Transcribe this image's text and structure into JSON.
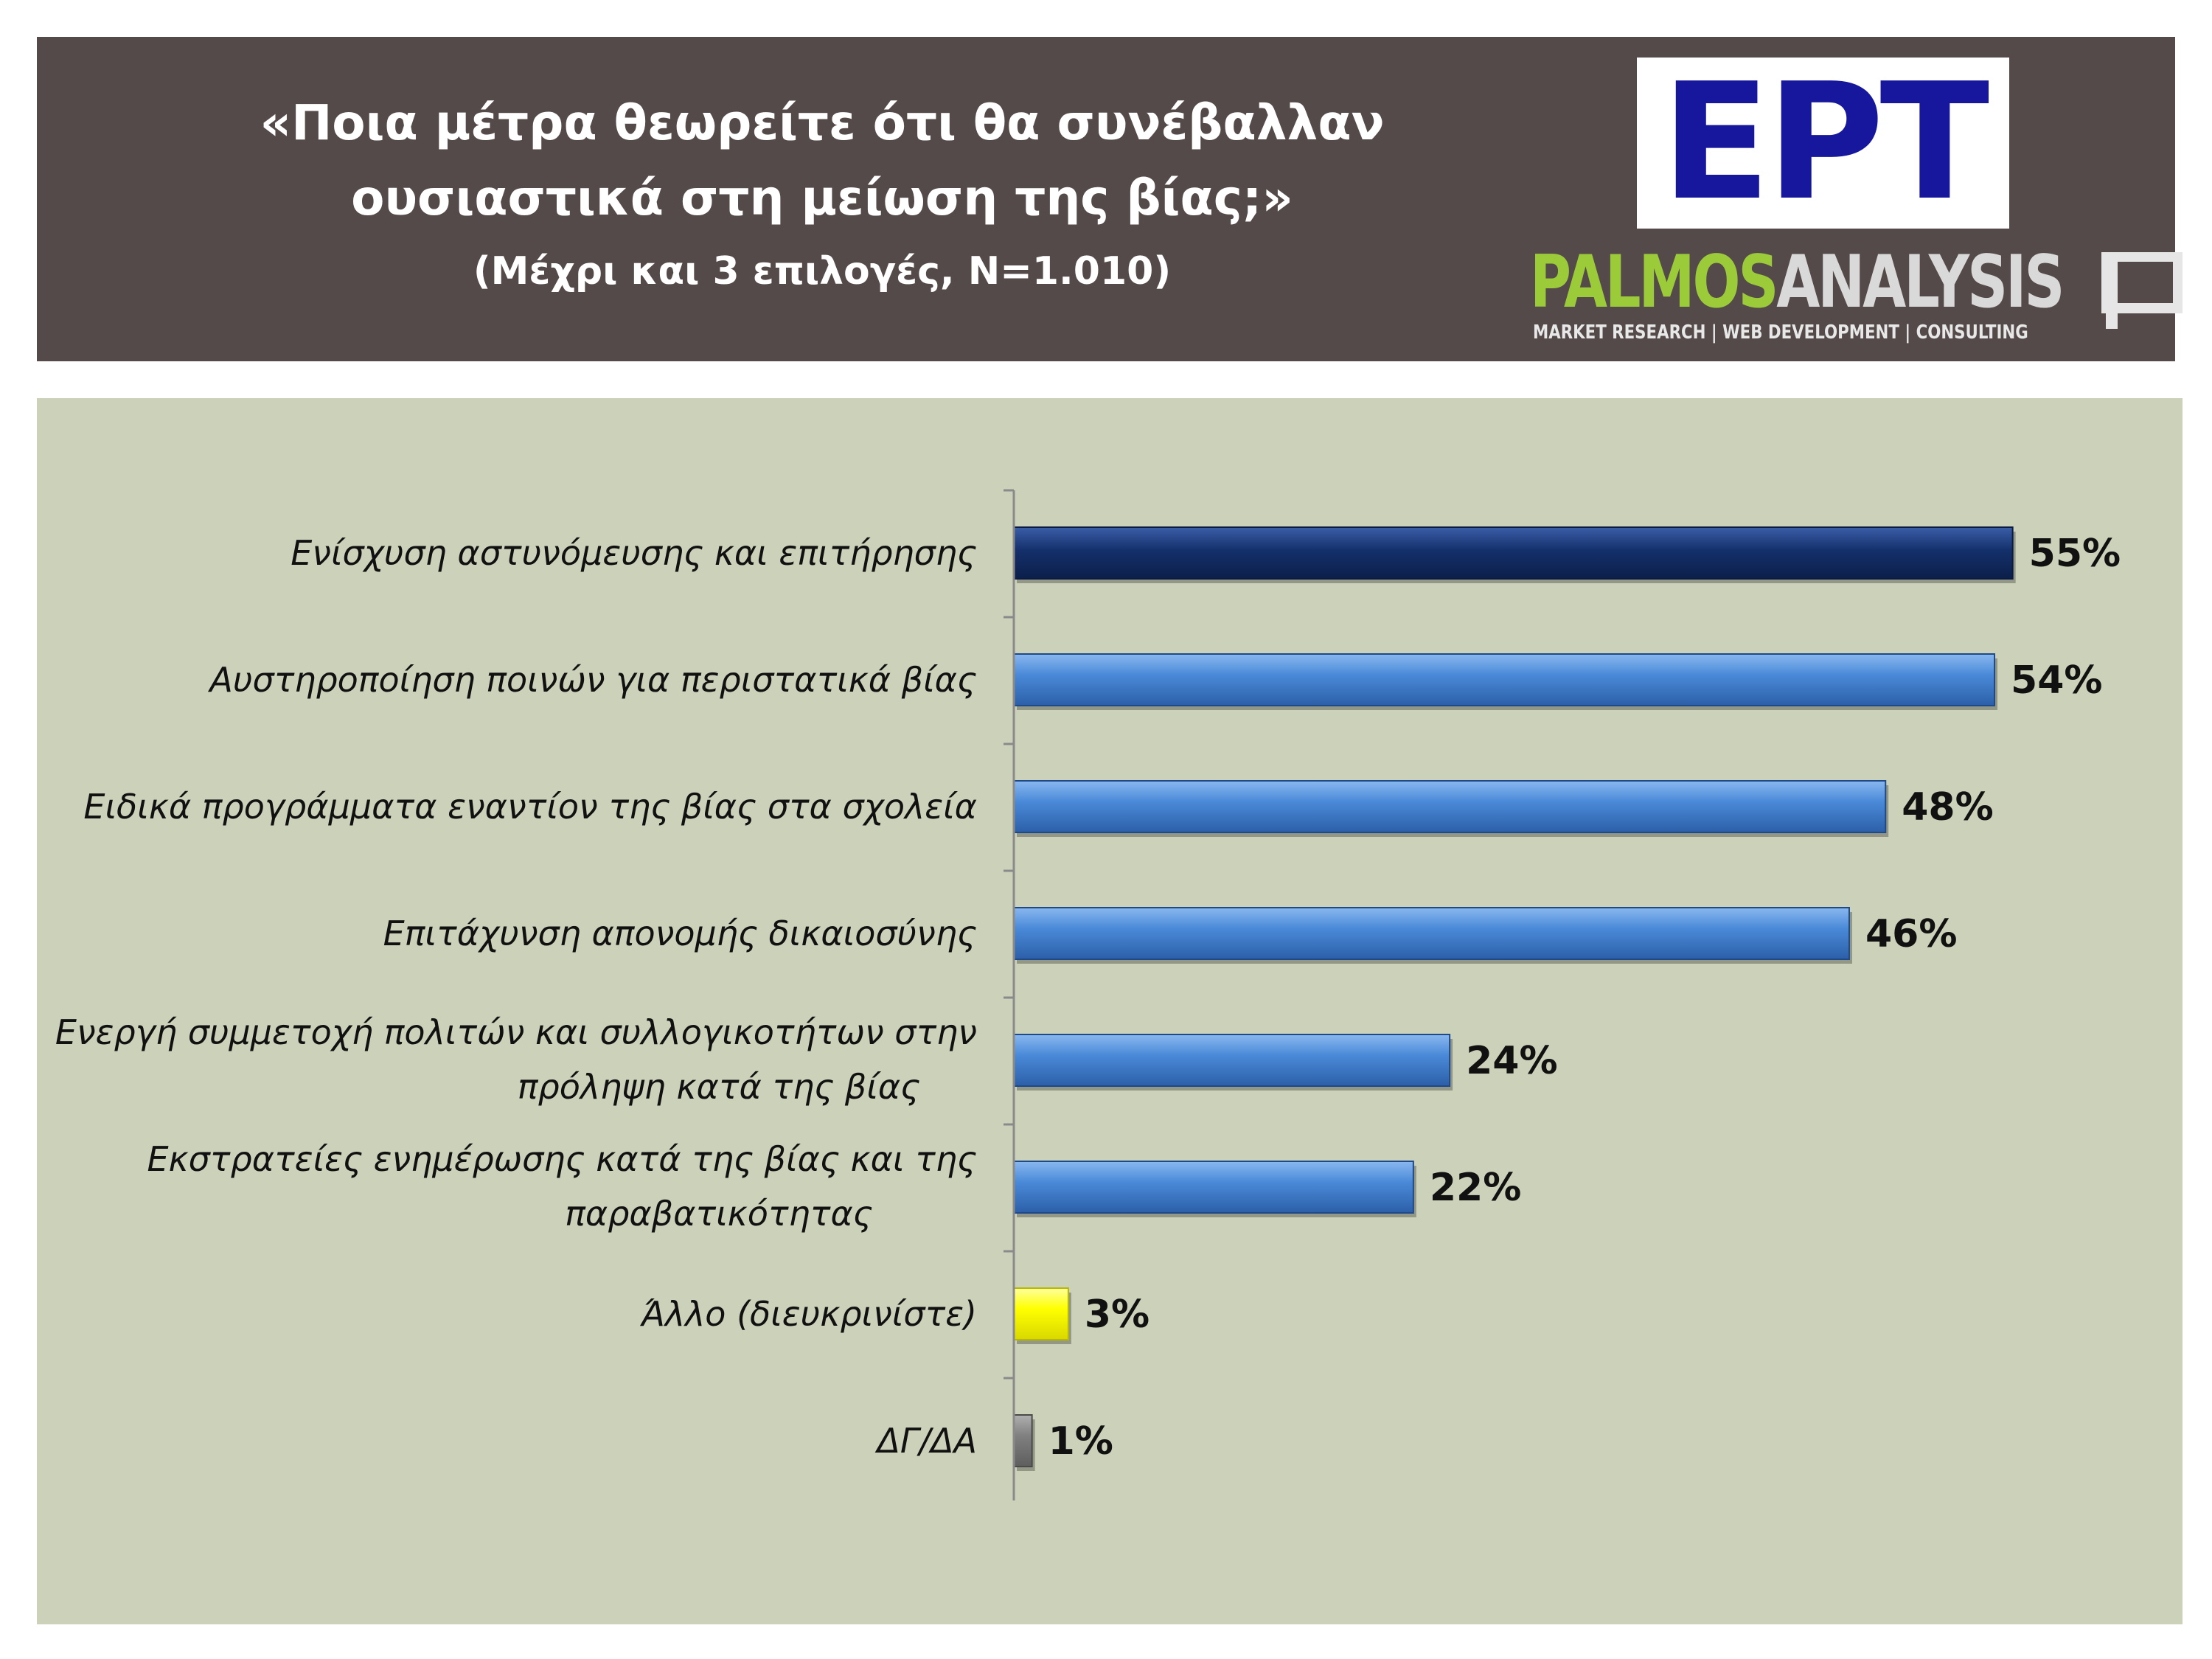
{
  "header": {
    "title_line1": "«Ποια μέτρα θεωρείτε ότι θα συνέβαλλαν",
    "title_line2": "ουσιαστικά στη μείωση της βίας;»",
    "subtitle": "(Μέχρι και 3 επιλογές, Ν=1.010)"
  },
  "logos": {
    "ert": "ΕΡΤ",
    "palmos_part1": "PALMOS",
    "palmos_part2": "ANALYSIS",
    "palmos_tagline": "MARKET RESEARCH | WEB DEVELOPMENT | CONSULTING"
  },
  "colors": {
    "header_bg": "#544a4a",
    "panel_bg": "#ccd2ba",
    "ert_blue": "#17179e",
    "palmos_green": "#9ccb3a"
  },
  "chart_data": {
    "type": "bar",
    "orientation": "horizontal",
    "categories": [
      [
        "Ενίσχυση αστυνόμευσης και επιτήρησης"
      ],
      [
        "Αυστηροποίηση ποινών για περιστατικά  βίας"
      ],
      [
        "Ειδικά προγράμματα εναντίον της βίας στα σχολεία"
      ],
      [
        "Επιτάχυνση απονομής δικαιοσύνης"
      ],
      [
        "Ενεργή συμμετοχή πολιτών και συλλογικοτήτων στην",
        "πρόληψη κατά της βίας"
      ],
      [
        "Εκστρατείες ενημέρωσης κατά της βίας και της",
        "παραβατικότητας"
      ],
      [
        "Άλλο (διευκρινίστε)"
      ],
      [
        "ΔΓ/ΔΑ"
      ]
    ],
    "values": [
      55,
      54,
      48,
      46,
      24,
      22,
      3,
      1
    ],
    "value_labels": [
      "55%",
      "54%",
      "48%",
      "46%",
      "24%",
      "22%",
      "3%",
      "1%"
    ],
    "bar_colors": [
      "#14306b",
      "#3f7ed0",
      "#3f7ed0",
      "#3f7ed0",
      "#3f7ed0",
      "#3f7ed0",
      "#ffff00",
      "#808080"
    ],
    "unit": "%",
    "grid": false,
    "legend": "none"
  }
}
